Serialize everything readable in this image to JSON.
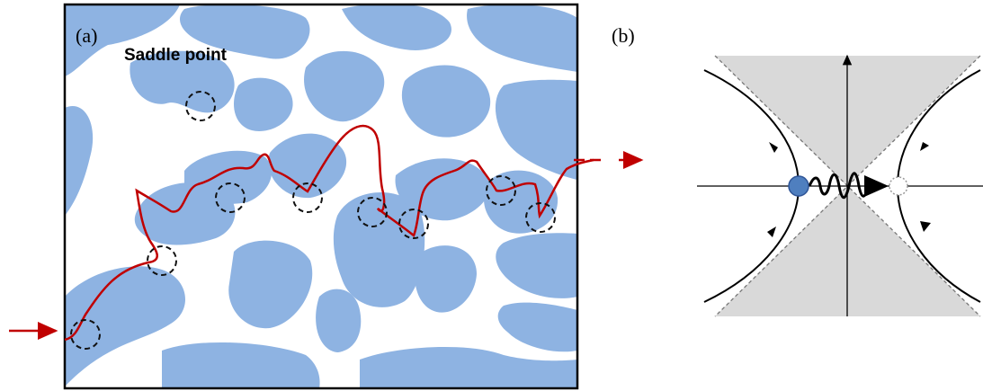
{
  "panel_a": {
    "label": "(a)",
    "annotation": "Saddle point"
  },
  "panel_b": {
    "label": "(b)"
  }
}
